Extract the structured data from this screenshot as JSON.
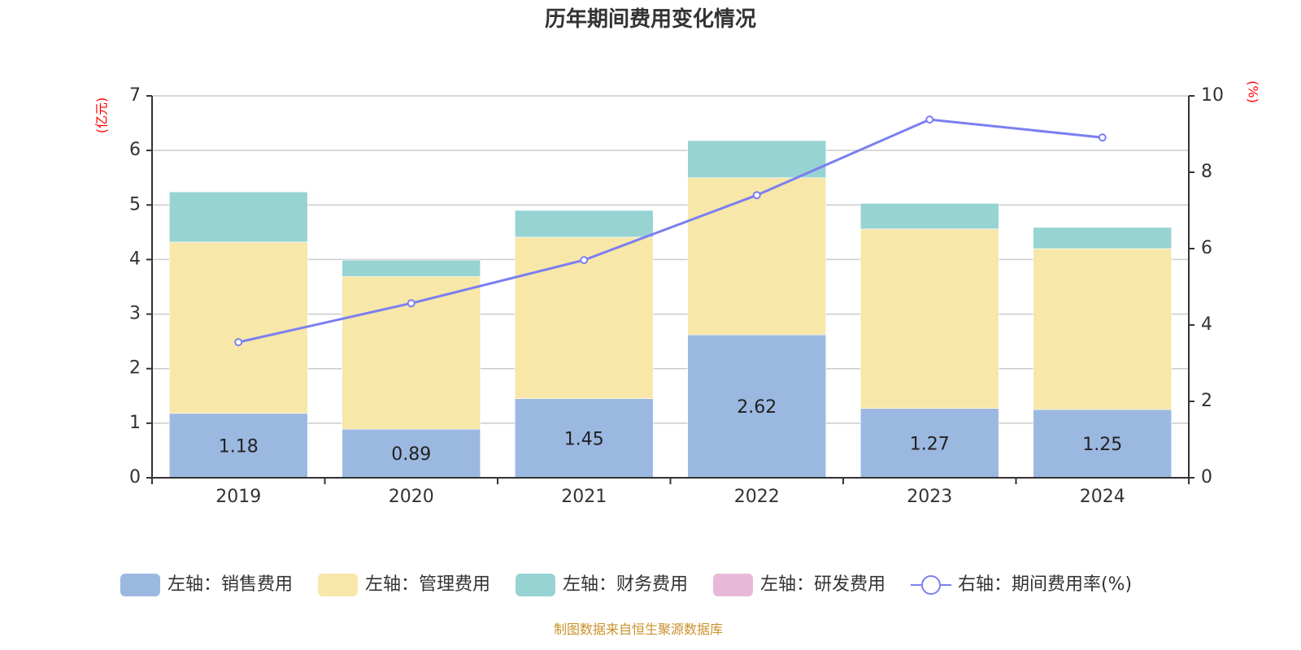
{
  "chart_data": {
    "type": "bar",
    "title": "历年期间费用变化情况",
    "categories": [
      "2019",
      "2020",
      "2021",
      "2022",
      "2023",
      "2024"
    ],
    "left_axis": {
      "label": "(亿元)",
      "ylim": [
        0,
        7
      ],
      "ticks": [
        0,
        1,
        2,
        3,
        4,
        5,
        6,
        7
      ]
    },
    "right_axis": {
      "label": "(%)",
      "ylim": [
        0,
        10
      ],
      "ticks": [
        0,
        2,
        4,
        6,
        8,
        10
      ]
    },
    "series": [
      {
        "name": "左轴：销售费用",
        "kind": "stacked-bar",
        "axis": "left",
        "color": "#9bb8e0",
        "values": [
          1.18,
          0.89,
          1.45,
          2.62,
          1.27,
          1.25
        ],
        "show_labels": true
      },
      {
        "name": "左轴：管理费用",
        "kind": "stacked-bar",
        "axis": "left",
        "color": "#f7e7a9",
        "values": [
          3.14,
          2.8,
          2.96,
          2.88,
          3.29,
          2.95
        ],
        "show_labels": false
      },
      {
        "name": "左轴：财务费用",
        "kind": "stacked-bar",
        "axis": "left",
        "color": "#97d3d3",
        "values": [
          0.92,
          0.3,
          0.49,
          0.68,
          0.47,
          0.39
        ],
        "show_labels": false
      },
      {
        "name": "左轴：研发费用",
        "kind": "stacked-bar",
        "axis": "left",
        "color": "#e8b8d8",
        "values": [
          0,
          0,
          0,
          0,
          0,
          0
        ],
        "show_labels": false
      },
      {
        "name": "右轴：期间费用率(%)",
        "kind": "line",
        "axis": "right",
        "color": "#7b7ff0",
        "values": [
          3.55,
          4.57,
          5.7,
          7.4,
          9.38,
          8.91
        ]
      }
    ],
    "grid": true,
    "legend_position": "bottom",
    "source": "制图数据来自恒生聚源数据库"
  }
}
